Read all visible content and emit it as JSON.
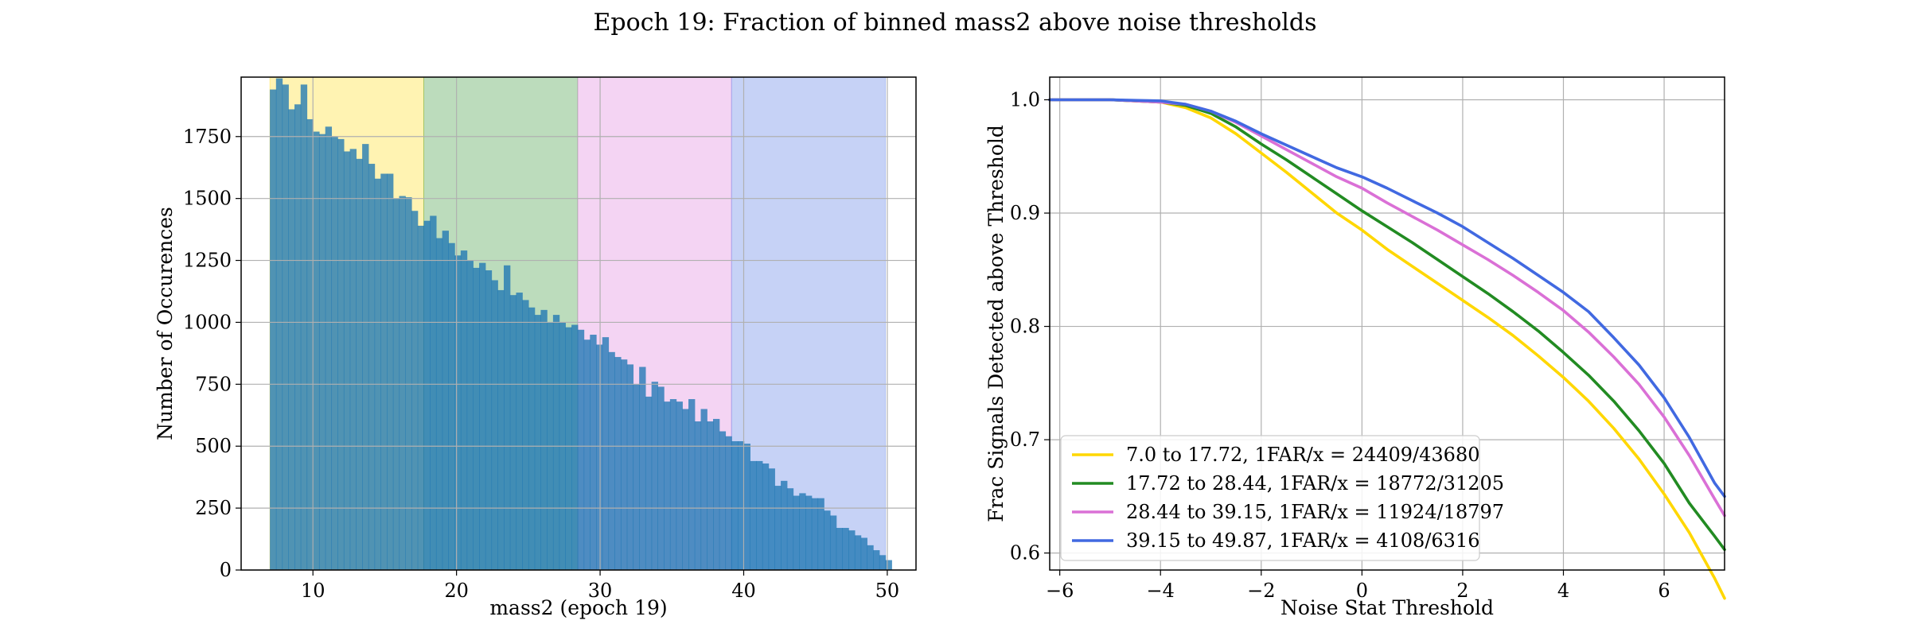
{
  "suptitle": "Epoch 19: Fraction of binned mass2 above noise thresholds",
  "chart_data": [
    {
      "type": "histogram",
      "xlabel": "mass2 (epoch 19)",
      "ylabel": "Number of Occurences",
      "xlim": [
        5.0,
        52.0
      ],
      "ylim": [
        0,
        1990
      ],
      "xticks": [
        10,
        20,
        30,
        40,
        50
      ],
      "yticks": [
        0,
        250,
        500,
        750,
        1000,
        1250,
        1500,
        1750
      ],
      "grid": true,
      "bin_start": 7.0,
      "bin_width": 0.4287,
      "counts": [
        1940,
        1985,
        1960,
        1860,
        1880,
        1960,
        1820,
        1770,
        1760,
        1790,
        1750,
        1740,
        1690,
        1700,
        1660,
        1720,
        1640,
        1580,
        1600,
        1600,
        1500,
        1510,
        1505,
        1450,
        1390,
        1410,
        1430,
        1340,
        1370,
        1320,
        1270,
        1290,
        1250,
        1220,
        1240,
        1210,
        1170,
        1130,
        1230,
        1110,
        1120,
        1090,
        1060,
        1030,
        1050,
        1000,
        1030,
        1000,
        980,
        990,
        970,
        930,
        950,
        910,
        940,
        880,
        860,
        850,
        830,
        750,
        820,
        700,
        760,
        740,
        680,
        690,
        680,
        650,
        690,
        600,
        650,
        600,
        610,
        560,
        540,
        520,
        520,
        510,
        440,
        440,
        430,
        410,
        340,
        360,
        330,
        300,
        310,
        300,
        290,
        290,
        240,
        220,
        170,
        170,
        160,
        140,
        130,
        100,
        80,
        60,
        40
      ],
      "bands": [
        {
          "from": 7.0,
          "to": 17.72,
          "color": "#ffd700"
        },
        {
          "from": 17.72,
          "to": 28.44,
          "color": "#228b22"
        },
        {
          "from": 28.44,
          "to": 39.15,
          "color": "#da70d6"
        },
        {
          "from": 39.15,
          "to": 49.87,
          "color": "#4169e1"
        }
      ],
      "bar_color": "#1f77b4"
    },
    {
      "type": "line",
      "xlabel": "Noise Stat Threshold",
      "ylabel": "Frac Signals Detected above Threshold",
      "xlim": [
        -6.2,
        7.2
      ],
      "ylim": [
        0.585,
        1.02
      ],
      "xticks": [
        -6,
        -4,
        -2,
        0,
        2,
        4,
        6
      ],
      "yticks": [
        0.6,
        0.7,
        0.8,
        0.9,
        1.0
      ],
      "grid": true,
      "legend": "lower-left",
      "x": [
        -6.2,
        -5,
        -4,
        -3.5,
        -3,
        -2.5,
        -2,
        -1.5,
        -1,
        -0.5,
        0,
        0.5,
        1,
        1.5,
        2,
        2.5,
        3,
        3.5,
        4,
        4.5,
        5,
        5.5,
        6,
        6.5,
        7,
        7.2
      ],
      "series": [
        {
          "name": "7.0 to 17.72, 1FAR/x = 24409/43680",
          "color": "#ffd700",
          "values": [
            1.0,
            1.0,
            0.998,
            0.993,
            0.984,
            0.97,
            0.953,
            0.936,
            0.918,
            0.9,
            0.885,
            0.868,
            0.853,
            0.838,
            0.823,
            0.808,
            0.792,
            0.774,
            0.755,
            0.734,
            0.71,
            0.683,
            0.652,
            0.618,
            0.578,
            0.56
          ]
        },
        {
          "name": "17.72 to 28.44, 1FAR/x = 18772/31205",
          "color": "#228b22",
          "values": [
            1.0,
            1.0,
            0.998,
            0.995,
            0.988,
            0.976,
            0.961,
            0.947,
            0.932,
            0.917,
            0.902,
            0.888,
            0.874,
            0.859,
            0.844,
            0.829,
            0.813,
            0.796,
            0.777,
            0.757,
            0.734,
            0.708,
            0.679,
            0.644,
            0.615,
            0.603
          ]
        },
        {
          "name": "28.44 to 39.15, 1FAR/x = 11924/18797",
          "color": "#da70d6",
          "values": [
            1.0,
            1.0,
            0.998,
            0.996,
            0.99,
            0.98,
            0.968,
            0.956,
            0.944,
            0.932,
            0.922,
            0.909,
            0.897,
            0.885,
            0.872,
            0.859,
            0.845,
            0.83,
            0.814,
            0.795,
            0.773,
            0.749,
            0.72,
            0.686,
            0.648,
            0.633
          ]
        },
        {
          "name": "39.15 to 49.87, 1FAR/x = 4108/6316",
          "color": "#4169e1",
          "values": [
            1.0,
            1.0,
            0.999,
            0.996,
            0.99,
            0.981,
            0.97,
            0.96,
            0.95,
            0.94,
            0.932,
            0.922,
            0.911,
            0.9,
            0.888,
            0.874,
            0.86,
            0.845,
            0.83,
            0.813,
            0.79,
            0.766,
            0.737,
            0.702,
            0.662,
            0.65
          ]
        }
      ]
    }
  ]
}
